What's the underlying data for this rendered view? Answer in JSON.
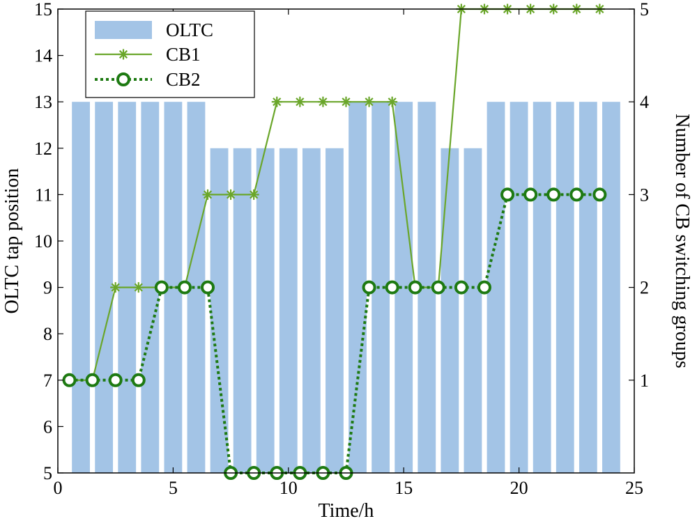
{
  "chart_data": {
    "type": "bar",
    "title": "",
    "xlabel": "Time/h",
    "ylabel_left": "OLTC tap position",
    "ylabel_right": "Number of CB switching groups",
    "xlim": [
      0,
      25
    ],
    "ylim_left": [
      5,
      15
    ],
    "ylim_right": [
      0,
      5
    ],
    "xticks": [
      0,
      5,
      10,
      15,
      20,
      25
    ],
    "yticks_left": [
      5,
      6,
      7,
      8,
      9,
      10,
      11,
      12,
      13,
      14,
      15
    ],
    "yticks_right": [
      1,
      2,
      3,
      4,
      5
    ],
    "legend_position": "top-left",
    "x": [
      1,
      2,
      3,
      4,
      5,
      6,
      7,
      8,
      9,
      10,
      11,
      12,
      13,
      14,
      15,
      16,
      17,
      18,
      19,
      20,
      21,
      22,
      23,
      24
    ],
    "series": [
      {
        "name": "OLTC",
        "axis": "left",
        "style": "bar",
        "color": "#a3c4e6",
        "values": [
          13,
          13,
          13,
          13,
          13,
          13,
          12,
          12,
          12,
          12,
          12,
          12,
          13,
          13,
          13,
          13,
          12,
          12,
          13,
          13,
          13,
          13,
          13,
          13
        ]
      },
      {
        "name": "CB1",
        "axis": "right",
        "style": "line-asterisk",
        "color": "#6aa62a",
        "x": [
          0.5,
          1.5,
          2.5,
          3.5,
          4.5,
          5.5,
          6.5,
          7.5,
          8.5,
          9.5,
          10.5,
          11.5,
          12.5,
          13.5,
          14.5,
          15.5,
          16.5,
          17.5,
          18.5,
          19.5,
          20.5,
          21.5,
          22.5,
          23.5
        ],
        "values": [
          1,
          1,
          2,
          2,
          2,
          2,
          3,
          3,
          3,
          4,
          4,
          4,
          4,
          4,
          4,
          2,
          2,
          5,
          5,
          5,
          5,
          5,
          5,
          5
        ]
      },
      {
        "name": "CB2",
        "axis": "right",
        "style": "dotted-circle",
        "color": "#1e7a12",
        "x": [
          0.5,
          1.5,
          2.5,
          3.5,
          4.5,
          5.5,
          6.5,
          7.5,
          8.5,
          9.5,
          10.5,
          11.5,
          12.5,
          13.5,
          14.5,
          15.5,
          16.5,
          17.5,
          18.5,
          19.5,
          20.5,
          21.5,
          22.5,
          23.5
        ],
        "values": [
          1,
          1,
          1,
          1,
          2,
          2,
          2,
          0,
          0,
          0,
          0,
          0,
          0,
          2,
          2,
          2,
          2,
          2,
          2,
          3,
          3,
          3,
          3,
          3
        ]
      }
    ]
  }
}
